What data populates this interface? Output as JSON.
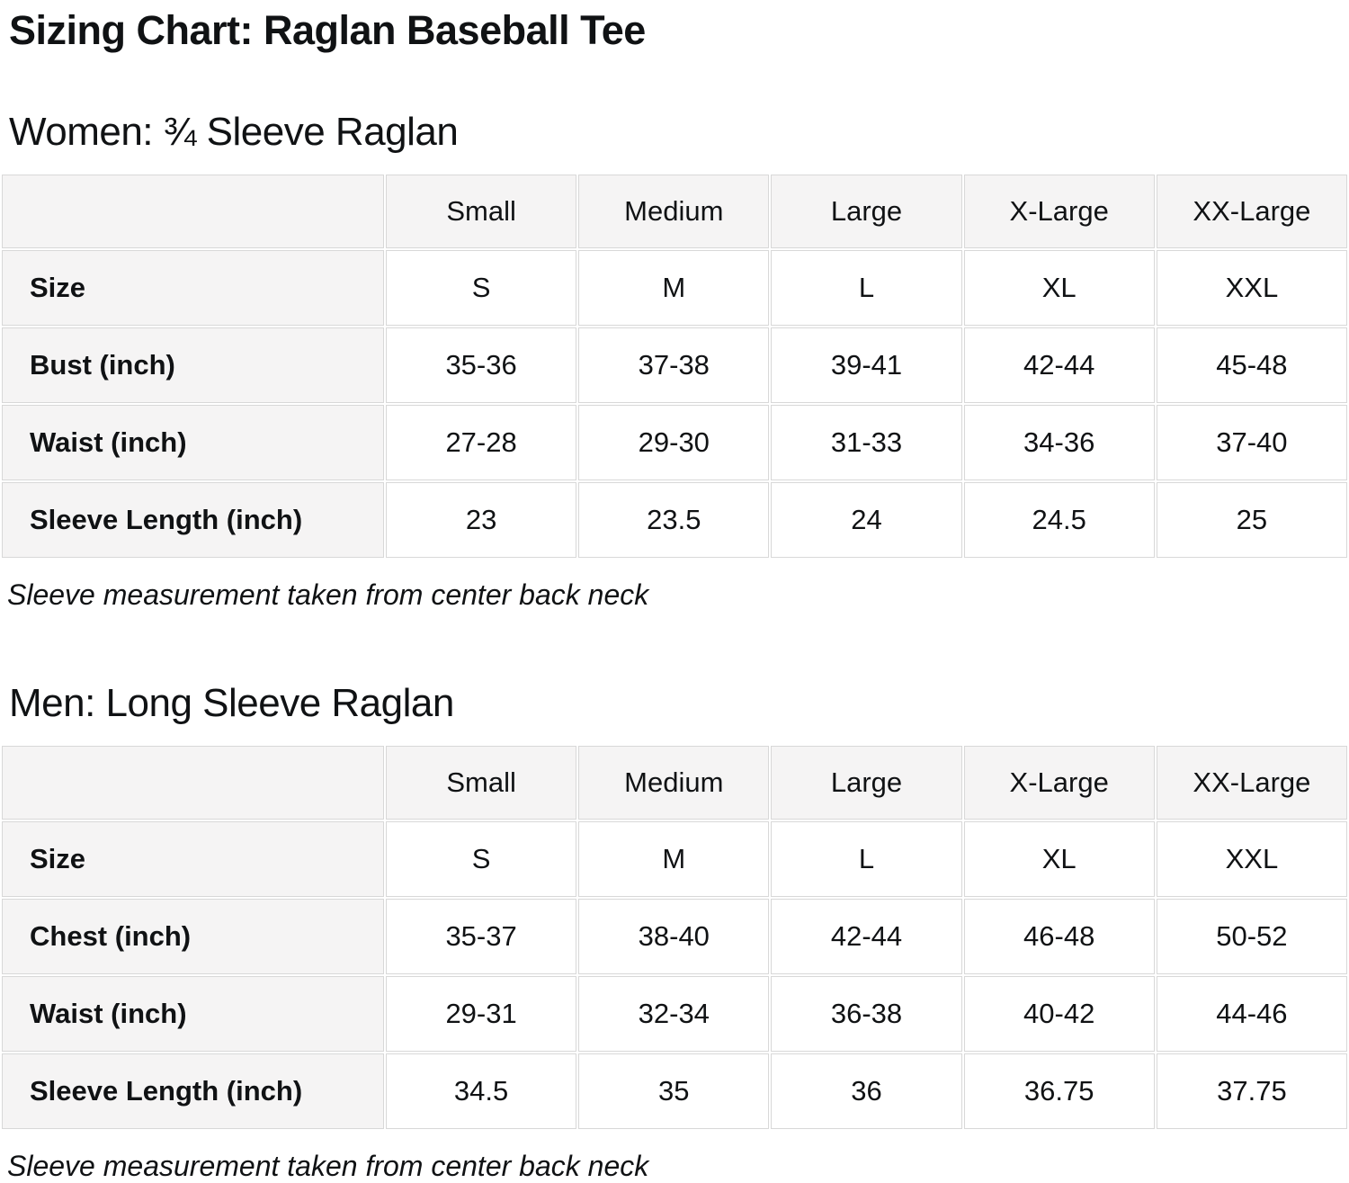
{
  "page": {
    "title": "Sizing Chart: Raglan Baseball Tee"
  },
  "colors": {
    "header_bg": "#f5f4f4",
    "border": "#d8d8d8",
    "text": "#101214",
    "cell_bg": "#ffffff"
  },
  "sections": [
    {
      "heading": "Women: ¾ Sleeve Raglan",
      "footnote": "Sleeve measurement taken from center back neck",
      "table": {
        "column_headers": [
          "",
          "Small",
          "Medium",
          "Large",
          "X-Large",
          "XX-Large"
        ],
        "rows": [
          {
            "label": "Size",
            "values": [
              "S",
              "M",
              "L",
              "XL",
              "XXL"
            ]
          },
          {
            "label": "Bust (inch)",
            "values": [
              "35-36",
              "37-38",
              "39-41",
              "42-44",
              "45-48"
            ]
          },
          {
            "label": "Waist (inch)",
            "values": [
              "27-28",
              "29-30",
              "31-33",
              "34-36",
              "37-40"
            ]
          },
          {
            "label": "Sleeve Length (inch)",
            "values": [
              "23",
              "23.5",
              "24",
              "24.5",
              "25"
            ]
          }
        ]
      }
    },
    {
      "heading": "Men: Long Sleeve Raglan",
      "footnote": "Sleeve measurement taken from center back neck",
      "table": {
        "column_headers": [
          "",
          "Small",
          "Medium",
          "Large",
          "X-Large",
          "XX-Large"
        ],
        "rows": [
          {
            "label": "Size",
            "values": [
              "S",
              "M",
              "L",
              "XL",
              "XXL"
            ]
          },
          {
            "label": "Chest (inch)",
            "values": [
              "35-37",
              "38-40",
              "42-44",
              "46-48",
              "50-52"
            ]
          },
          {
            "label": "Waist (inch)",
            "values": [
              "29-31",
              "32-34",
              "36-38",
              "40-42",
              "44-46"
            ]
          },
          {
            "label": "Sleeve Length (inch)",
            "values": [
              "34.5",
              "35",
              "36",
              "36.75",
              "37.75"
            ]
          }
        ]
      }
    }
  ]
}
